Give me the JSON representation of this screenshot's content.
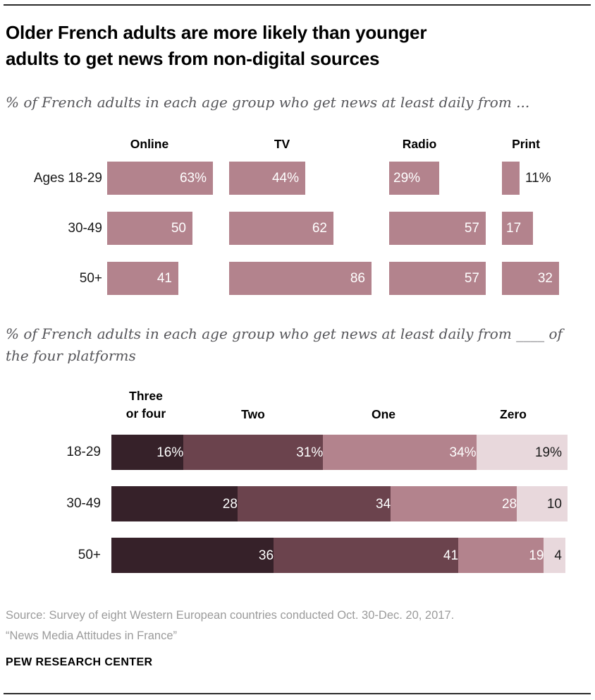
{
  "page": {
    "title_lines": [
      "Older French adults are more likely than younger",
      "adults to get news from non-digital sources"
    ],
    "subtitle1": "% of French adults in each age group who get news at least daily from ...",
    "subtitle2_lines": [
      "% of French adults in each age group who get news at least daily from ____ of",
      "the four platforms"
    ],
    "source_lines": [
      "Source: Survey of eight Western European countries conducted Oct. 30-Dec. 20, 2017.",
      "“News Media Attitudes in France”"
    ],
    "brand": "PEW RESEARCH CENTER"
  },
  "colors": {
    "bar_mauve": "#b3838d",
    "stack_dark": "#362129",
    "stack_medium": "#6b434d",
    "stack_light_mauve": "#b3838d",
    "stack_pale": "#e8d8dc",
    "label_on_dark": "#ffffff",
    "label_on_light": "#1a1a1a"
  },
  "chart_data": [
    {
      "type": "bar",
      "orientation": "horizontal",
      "title": "% of French adults in each age group who get news at least daily from ...",
      "row_labels": [
        "Ages 18-29",
        "30-49",
        "50+"
      ],
      "xlim": [
        0,
        100
      ],
      "grid": false,
      "columns": [
        {
          "label": "Online",
          "values": [
            63,
            50,
            41
          ],
          "value_labels": [
            "63%",
            "50",
            "41"
          ]
        },
        {
          "label": "TV",
          "values": [
            44,
            62,
            86
          ],
          "value_labels": [
            "44%",
            "62",
            "86"
          ]
        },
        {
          "label": "Radio",
          "values": [
            29,
            57,
            57
          ],
          "value_labels": [
            "29%",
            "57",
            "57"
          ]
        },
        {
          "label": "Print",
          "values": [
            11,
            17,
            32
          ],
          "value_labels": [
            "11%",
            "17",
            "32"
          ]
        }
      ]
    },
    {
      "type": "bar",
      "orientation": "horizontal-stacked",
      "title": "% of French adults in each age group who get news at least daily from ____ of the four platforms",
      "categories": [
        "18-29",
        "30-49",
        "50+"
      ],
      "header_lines": [
        [
          "Three",
          "or four"
        ],
        [
          "Two"
        ],
        [
          "One"
        ],
        [
          "Zero"
        ]
      ],
      "series": [
        {
          "name": "Three or four",
          "values": [
            16,
            28,
            36
          ]
        },
        {
          "name": "Two",
          "values": [
            31,
            34,
            41
          ]
        },
        {
          "name": "One",
          "values": [
            34,
            28,
            19
          ]
        },
        {
          "name": "Zero",
          "values": [
            19,
            10,
            4
          ]
        }
      ],
      "value_labels": [
        [
          "16%",
          "31%",
          "34%",
          "19%"
        ],
        [
          "28",
          "34",
          "28",
          "10"
        ],
        [
          "36",
          "41",
          "19",
          "4"
        ]
      ],
      "xlim": [
        0,
        100
      ],
      "grid": false
    }
  ]
}
